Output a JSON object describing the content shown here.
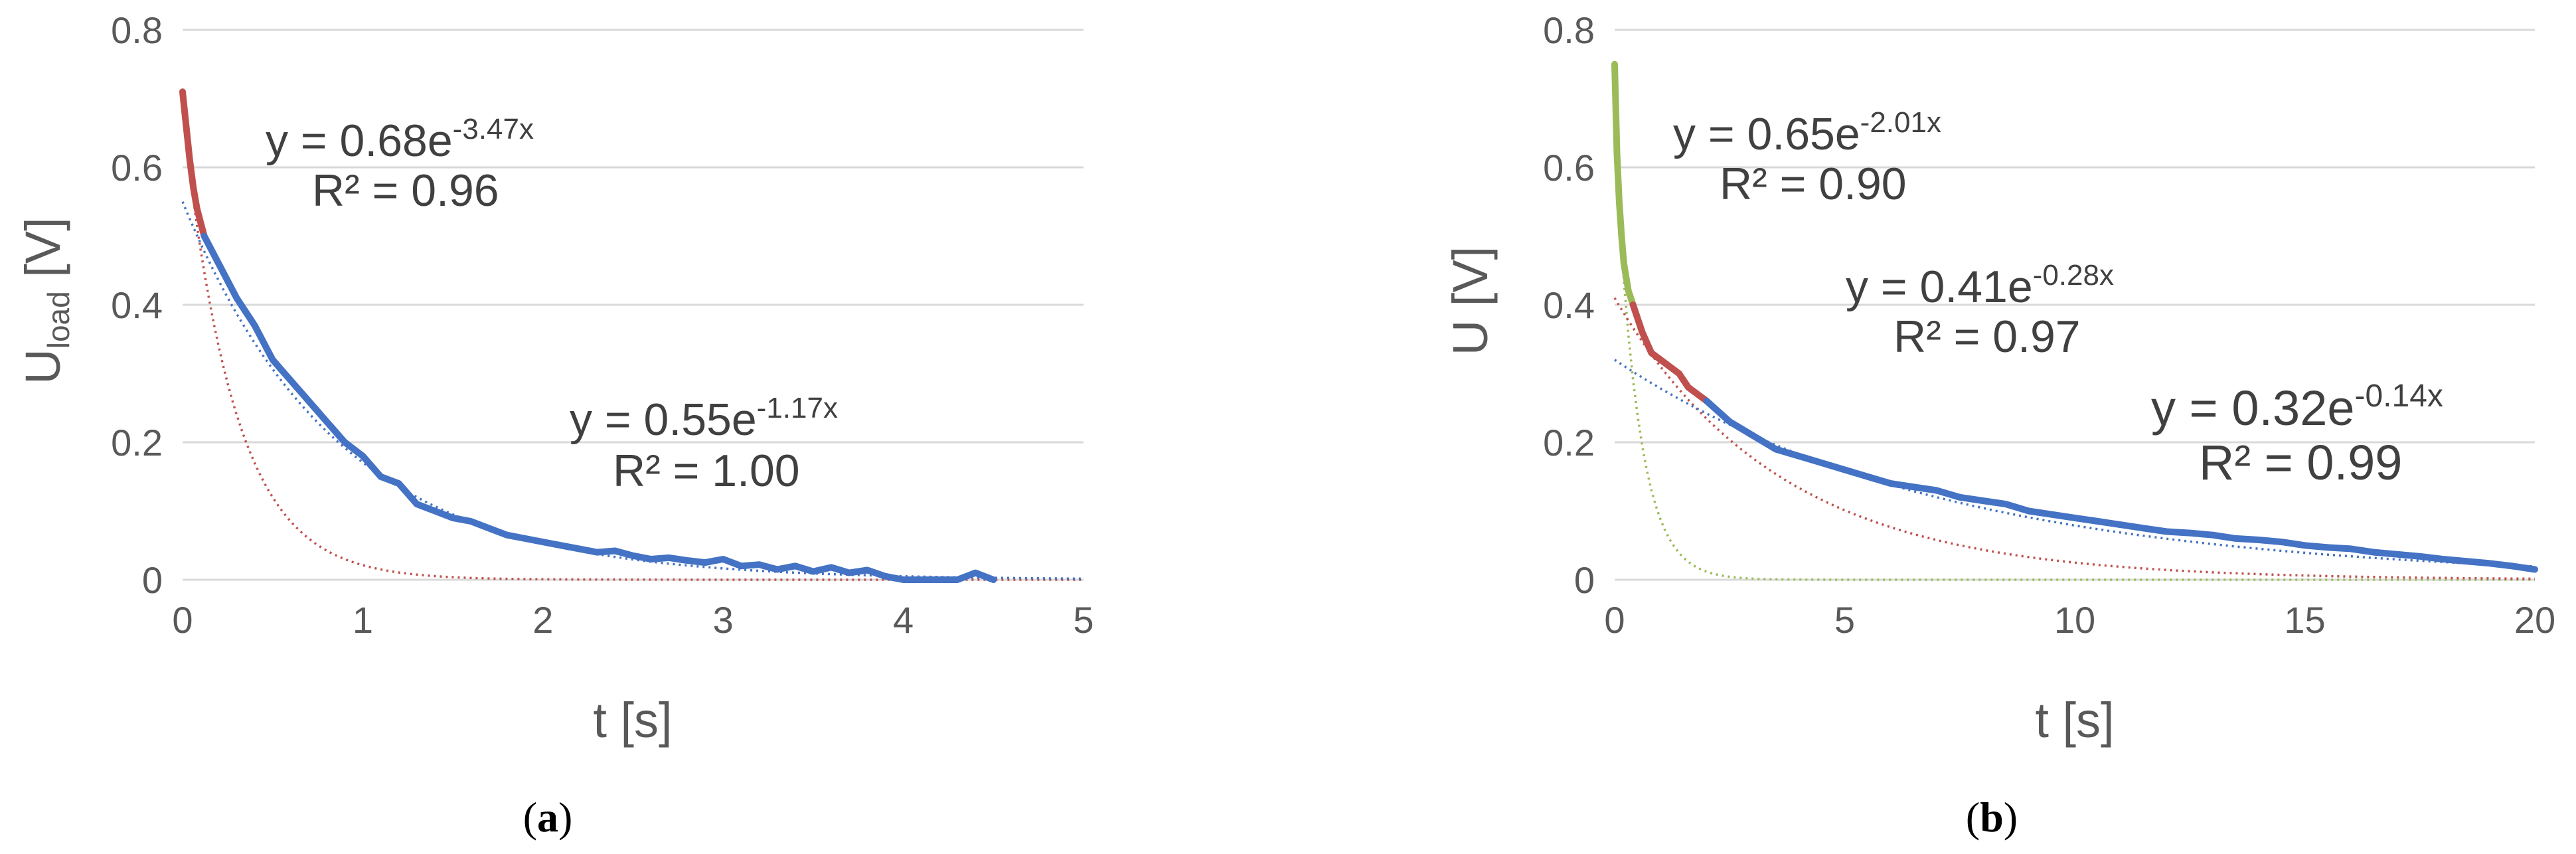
{
  "chart_data": [
    {
      "type": "scatter",
      "panel_label": "a",
      "xlabel": "t [s]",
      "ylabel_main": "U",
      "ylabel_sub": "load",
      "ylabel_unit": " [V]",
      "xlim": [
        0,
        5
      ],
      "ylim": [
        0,
        0.8
      ],
      "xticks": [
        "0",
        "1",
        "2",
        "3",
        "4",
        "5"
      ],
      "yticks": [
        "0",
        "0.2",
        "0.4",
        "0.6",
        "0.8"
      ],
      "grid": "horizontal",
      "series": [
        {
          "color": "#C0504D",
          "x": [
            0.0,
            0.02,
            0.04,
            0.06,
            0.08,
            0.1,
            0.12
          ],
          "values": [
            0.71,
            0.66,
            0.61,
            0.57,
            0.54,
            0.52,
            0.5
          ]
        },
        {
          "color": "#4472C4",
          "x": [
            0.12,
            0.2,
            0.3,
            0.4,
            0.5,
            0.6,
            0.7,
            0.8,
            0.9,
            1.0,
            1.1,
            1.2,
            1.3,
            1.4,
            1.5,
            1.6,
            1.7,
            1.8,
            1.9,
            2.0,
            2.1,
            2.2,
            2.3,
            2.4,
            2.5,
            2.6,
            2.7,
            2.8,
            2.9,
            3.0,
            3.1,
            3.2,
            3.3,
            3.4,
            3.5,
            3.6,
            3.7,
            3.8,
            3.9,
            4.0,
            4.1,
            4.2,
            4.3,
            4.4,
            4.5
          ],
          "values": [
            0.5,
            0.46,
            0.41,
            0.37,
            0.32,
            0.29,
            0.26,
            0.23,
            0.2,
            0.18,
            0.15,
            0.14,
            0.11,
            0.1,
            0.09,
            0.085,
            0.075,
            0.065,
            0.06,
            0.055,
            0.05,
            0.045,
            0.04,
            0.042,
            0.035,
            0.03,
            0.032,
            0.028,
            0.025,
            0.03,
            0.02,
            0.022,
            0.015,
            0.02,
            0.012,
            0.018,
            0.01,
            0.014,
            0.005,
            0.0,
            0.0,
            0.0,
            0.0,
            0.01,
            0.0
          ]
        }
      ],
      "fits": [
        {
          "color": "#C0504D",
          "a": 0.68,
          "b": 3.47,
          "equation": "y = 0.68e",
          "exponent": "-3.47x",
          "r2": "R² = 0.96"
        },
        {
          "color": "#4472C4",
          "a": 0.55,
          "b": 1.17,
          "equation": "y = 0.55e",
          "exponent": "-1.17x",
          "r2": "R² = 1.00"
        }
      ]
    },
    {
      "type": "scatter",
      "panel_label": "b",
      "xlabel": "t [s]",
      "ylabel_main": "U [V]",
      "xlim": [
        0,
        20
      ],
      "ylim": [
        0,
        0.8
      ],
      "xticks": [
        "0",
        "5",
        "10",
        "15",
        "20"
      ],
      "yticks": [
        "0",
        "0.2",
        "0.4",
        "0.6",
        "0.8"
      ],
      "grid": "horizontal",
      "series": [
        {
          "color": "#9BBB59",
          "x": [
            0.0,
            0.05,
            0.1,
            0.15,
            0.2,
            0.25,
            0.3,
            0.35,
            0.4
          ],
          "values": [
            0.75,
            0.62,
            0.55,
            0.5,
            0.46,
            0.44,
            0.42,
            0.41,
            0.4
          ]
        },
        {
          "color": "#C0504D",
          "x": [
            0.4,
            0.6,
            0.8,
            1.0,
            1.2,
            1.4,
            1.6,
            1.8,
            2.0
          ],
          "values": [
            0.4,
            0.36,
            0.33,
            0.32,
            0.31,
            0.3,
            0.28,
            0.27,
            0.26
          ]
        },
        {
          "color": "#4472C4",
          "x": [
            2.0,
            2.5,
            3.0,
            3.5,
            4.0,
            4.5,
            5.0,
            5.5,
            6.0,
            6.5,
            7.0,
            7.5,
            8.0,
            8.5,
            9.0,
            9.5,
            10.0,
            10.5,
            11.0,
            11.5,
            12.0,
            12.5,
            13.0,
            13.5,
            14.0,
            14.5,
            15.0,
            15.5,
            16.0,
            16.5,
            17.0,
            17.5,
            18.0,
            18.5,
            19.0,
            19.5,
            20.0
          ],
          "values": [
            0.26,
            0.23,
            0.21,
            0.19,
            0.18,
            0.17,
            0.16,
            0.15,
            0.14,
            0.135,
            0.13,
            0.12,
            0.115,
            0.11,
            0.1,
            0.095,
            0.09,
            0.085,
            0.08,
            0.075,
            0.07,
            0.068,
            0.065,
            0.06,
            0.058,
            0.055,
            0.05,
            0.047,
            0.045,
            0.04,
            0.037,
            0.034,
            0.03,
            0.027,
            0.024,
            0.02,
            0.015
          ]
        }
      ],
      "fits": [
        {
          "color": "#9BBB59",
          "a": 0.65,
          "b": 2.01,
          "equation": "y = 0.65e",
          "exponent": "-2.01x",
          "r2": "R² = 0.90"
        },
        {
          "color": "#C0504D",
          "a": 0.41,
          "b": 0.28,
          "equation": "y = 0.41e",
          "exponent": "-0.28x",
          "r2": "R² = 0.97"
        },
        {
          "color": "#4472C4",
          "a": 0.32,
          "b": 0.14,
          "equation": "y = 0.32e",
          "exponent": "-0.14x",
          "r2": "R² = 0.99"
        }
      ]
    }
  ]
}
